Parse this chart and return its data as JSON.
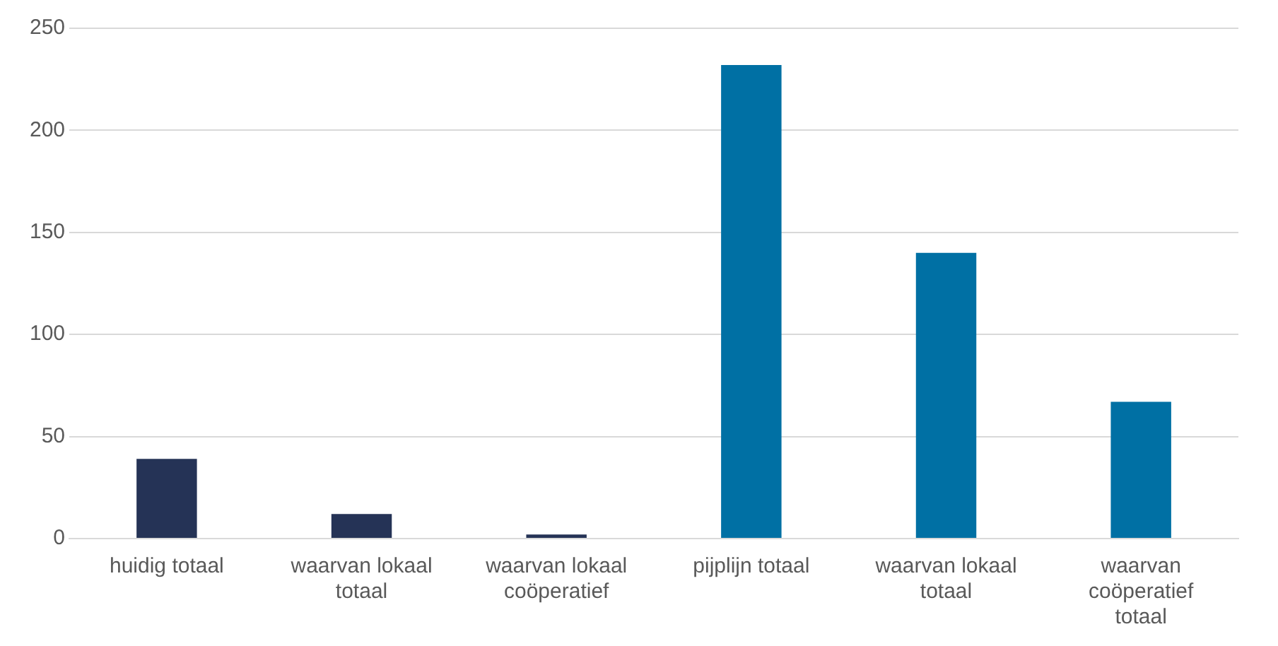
{
  "chart_data": {
    "type": "bar",
    "categories": [
      "huidig totaal",
      "waarvan lokaal totaal",
      "waarvan lokaal coöperatief",
      "pijplijn totaal",
      "waarvan lokaal totaal",
      "waarvan coöperatief totaal"
    ],
    "values": [
      39,
      12,
      2,
      232,
      140,
      67
    ],
    "colors": [
      "#253356",
      "#253356",
      "#253356",
      "#0070a4",
      "#0070a4",
      "#0070a4"
    ],
    "ylim": [
      0,
      250
    ],
    "yticks": [
      0,
      50,
      100,
      150,
      200,
      250
    ],
    "grid": "y",
    "legend": false
  }
}
